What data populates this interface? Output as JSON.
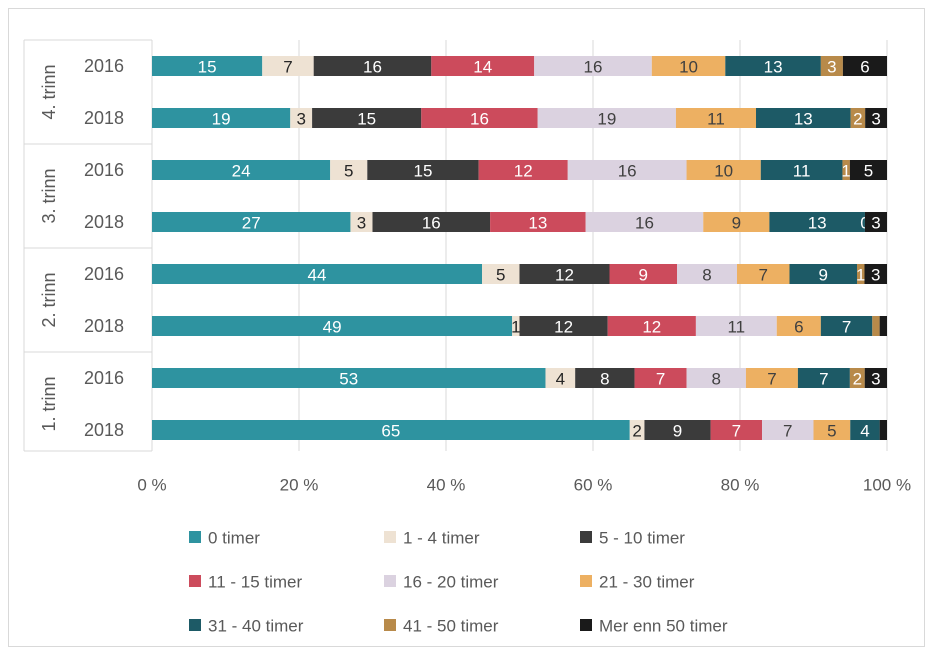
{
  "chart_data": {
    "type": "bar",
    "orientation": "horizontal",
    "stacked": "percent",
    "xlim": [
      0,
      100
    ],
    "x_ticks": [
      "0 %",
      "20 %",
      "40 %",
      "60 %",
      "80 %",
      "100 %"
    ],
    "grid": true,
    "legend_position": "bottom",
    "groups": [
      "4. trinn",
      "3. trinn",
      "2. trinn",
      "1. trinn"
    ],
    "rows": [
      {
        "group": "4. trinn",
        "year": "2016"
      },
      {
        "group": "4. trinn",
        "year": "2018"
      },
      {
        "group": "3. trinn",
        "year": "2016"
      },
      {
        "group": "3. trinn",
        "year": "2018"
      },
      {
        "group": "2. trinn",
        "year": "2016"
      },
      {
        "group": "2. trinn",
        "year": "2018"
      },
      {
        "group": "1. trinn",
        "year": "2016"
      },
      {
        "group": "1. trinn",
        "year": "2018"
      }
    ],
    "series": [
      {
        "name": "0 timer",
        "color": "#2e93a0",
        "label_color": "#ffffff",
        "values": [
          15,
          19,
          24,
          27,
          44,
          49,
          53,
          65
        ]
      },
      {
        "name": "1 - 4 timer",
        "color": "#eee2d3",
        "label_color": "#262626",
        "values": [
          7,
          3,
          5,
          3,
          5,
          1,
          4,
          2
        ]
      },
      {
        "name": "5 - 10 timer",
        "color": "#3b3b3b",
        "label_color": "#ffffff",
        "values": [
          16,
          15,
          15,
          16,
          12,
          12,
          8,
          9
        ]
      },
      {
        "name": "11 - 15 timer",
        "color": "#cc4b5c",
        "label_color": "#ffffff",
        "values": [
          14,
          16,
          12,
          13,
          9,
          12,
          7,
          7
        ]
      },
      {
        "name": "16 - 20 timer",
        "color": "#dbd2e0",
        "label_color": "#404040",
        "values": [
          16,
          19,
          16,
          16,
          8,
          11,
          8,
          7
        ]
      },
      {
        "name": "21 - 30 timer",
        "color": "#edb062",
        "label_color": "#404040",
        "values": [
          10,
          11,
          10,
          9,
          7,
          6,
          7,
          5
        ]
      },
      {
        "name": "31 - 40 timer",
        "color": "#1d5a66",
        "label_color": "#ffffff",
        "values": [
          13,
          13,
          11,
          13,
          9,
          7,
          7,
          4
        ]
      },
      {
        "name": "41 - 50 timer",
        "color": "#b88a4a",
        "label_color": "#ffffff",
        "values": [
          3,
          2,
          1,
          0,
          1,
          1,
          2,
          0
        ]
      },
      {
        "name": "Mer enn 50 timer",
        "color": "#1a1a1a",
        "label_color": "#ffffff",
        "values": [
          6,
          3,
          5,
          3,
          3,
          1,
          3,
          1
        ]
      }
    ],
    "data_labels": [
      [
        "15",
        "7",
        "16",
        "14",
        "16",
        "10",
        "13",
        "3",
        "6"
      ],
      [
        "19",
        "3",
        "15",
        "16",
        "19",
        "11",
        "13",
        "2",
        "3"
      ],
      [
        "24",
        "5",
        "15",
        "12",
        "16",
        "10",
        "11",
        "1",
        "5"
      ],
      [
        "27",
        "3",
        "16",
        "13",
        "16",
        "9",
        "13",
        "0",
        "3"
      ],
      [
        "44",
        "5",
        "12",
        "9",
        "8",
        "7",
        "9",
        "1",
        "3"
      ],
      [
        "49",
        "1",
        "12",
        "12",
        "11",
        "6",
        "7",
        "",
        ""
      ],
      [
        "53",
        "4",
        "8",
        "7",
        "8",
        "7",
        "7",
        "2",
        "3"
      ],
      [
        "65",
        "2",
        "9",
        "7",
        "7",
        "5",
        "4",
        "",
        ""
      ]
    ]
  }
}
